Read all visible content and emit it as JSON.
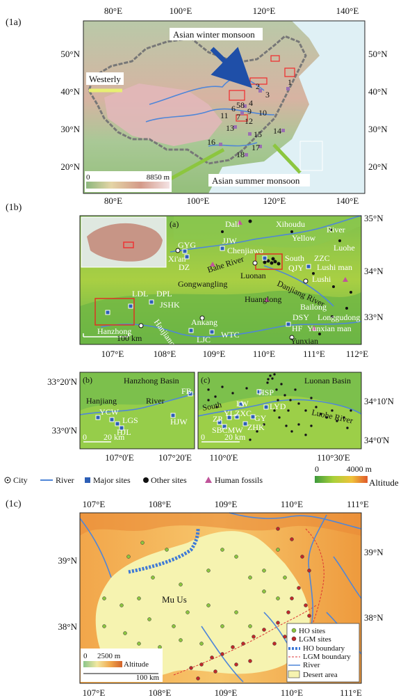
{
  "figure": {
    "panel_1a": {
      "label": "(1a)",
      "top_ticks": [
        "80°E",
        "100°E",
        "120°E",
        "140°E"
      ],
      "bottom_ticks": [
        "80°E",
        "100°E",
        "120°E",
        "140°E"
      ],
      "left_ticks": [
        "50°N",
        "40°N",
        "30°N",
        "20°N"
      ],
      "right_ticks": [
        "50°N",
        "40°N",
        "30°N",
        "20°N"
      ],
      "title_winter": "Asian winter monsoon",
      "title_summer": "Asian summer monsoon",
      "westerly": "Westerly",
      "legend": {
        "min": "0",
        "max": "8850 m"
      },
      "site_numbers": [
        "1",
        "2",
        "3",
        "4",
        "5",
        "6",
        "7",
        "8",
        "9",
        "10",
        "11",
        "12",
        "13",
        "14",
        "15",
        "16",
        "17",
        "18"
      ]
    },
    "panel_1b": {
      "label": "(1b)",
      "sub_a": "(a)",
      "sub_b": "(b)",
      "sub_c": "(c)",
      "top_right_ticks": [
        "35°N",
        "34°N",
        "33°N"
      ],
      "bottom_ticks_a": [
        "107°E",
        "108°E",
        "109°E",
        "110°E",
        "111°E",
        "112°E"
      ],
      "scale_a": "100 km",
      "places_a": [
        "Dali",
        "Xihoudu",
        "Yellow",
        "River",
        "Luohe",
        "GYG",
        "JJW",
        "Chenjiawo",
        "Xi'an",
        "DZ",
        "Bahe River",
        "South",
        "ZZC",
        "QJY",
        "Lushi man",
        "Lushi",
        "Gongwangling",
        "Luonan",
        "Danjiang River",
        "Huanglong",
        "LDL",
        "DPL",
        "JSHK",
        "Bailong",
        "DSY",
        "Longgudong",
        "Hanzhong",
        "Ankang",
        "Hanjiang",
        "HF",
        "Yunxian man",
        "LJC",
        "WTC",
        "Yunxian"
      ],
      "sub_b_title": "Hanzhong Basin",
      "sub_b_left_ticks": [
        "33°20'N",
        "33°0'N"
      ],
      "sub_b_bottom_ticks": [
        "107°0'E",
        "107°20'E"
      ],
      "sub_b_places": [
        "Hanjiang",
        "River",
        "FB",
        "YCW",
        "LGS",
        "HJL",
        "HJW"
      ],
      "sub_b_scale": "20 km",
      "sub_c_title": "Luonan Basin",
      "sub_c_right_ticks": [
        "34°10'N",
        "34°0'N"
      ],
      "sub_c_bottom_ticks": [
        "110°0'E",
        "110°30'E"
      ],
      "sub_c_places": [
        "HSP",
        "South",
        "LW",
        "LYD",
        "Luohe River",
        "ZP",
        "YL",
        "ZXC",
        "GY",
        "SBCMW",
        "ZHK"
      ],
      "sub_c_scale": "20 km",
      "legend": {
        "city": "City",
        "river": "River",
        "major": "Major sites",
        "other": "Other sites",
        "fossils": "Human fossils",
        "alt_min": "0",
        "alt_max": "4000 m",
        "alt_label": "Altitude"
      }
    },
    "panel_1c": {
      "label": "(1c)",
      "top_ticks": [
        "107°E",
        "108°E",
        "109°E",
        "110°E",
        "111°E"
      ],
      "bottom_ticks": [
        "107°E",
        "108°E",
        "109°E",
        "110°E",
        "111°E"
      ],
      "left_ticks": [
        "39°N",
        "38°N"
      ],
      "right_ticks": [
        "39°N",
        "38°N"
      ],
      "place": "Mu Us",
      "legend": [
        "HO sites",
        "LGM sites",
        "HO boundary",
        "LGM boundary",
        "River",
        "Desert area"
      ],
      "alt_legend": {
        "min": "0",
        "max": "2500 m",
        "label": "Altitude",
        "scale": "100 km"
      }
    },
    "colors": {
      "river": "#4f86d8",
      "site": "#2d5fb6",
      "lgm": "#c0282a",
      "ho": "#8cc63f",
      "desert": "#f6f3b0",
      "arrow_winter": "#1f4fa8",
      "arrow_summer": "#8cc63f"
    }
  }
}
